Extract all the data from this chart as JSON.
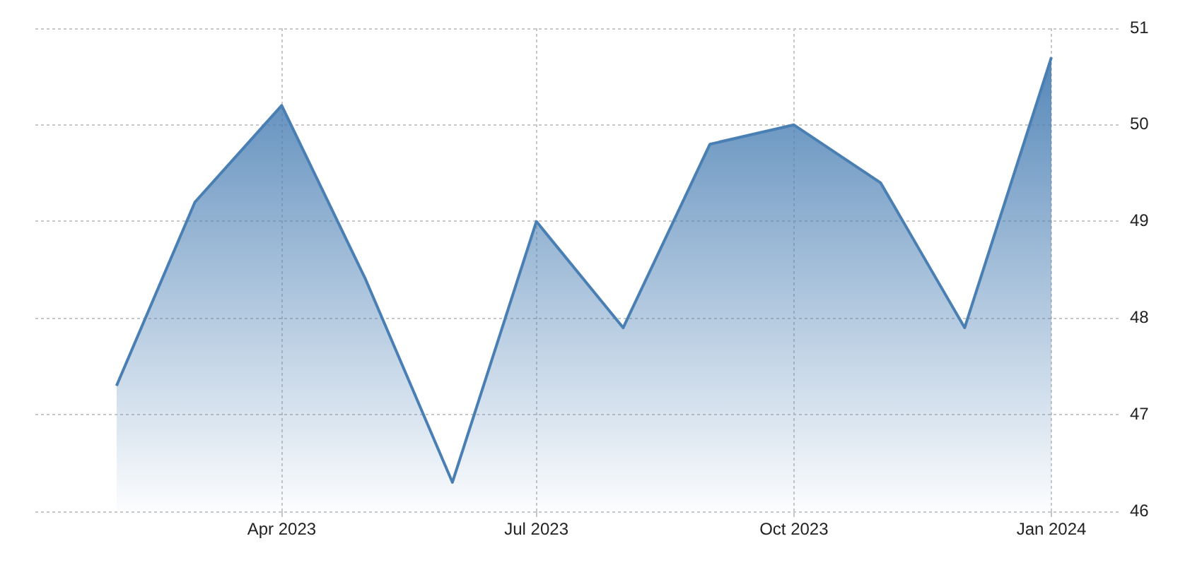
{
  "chart_data": {
    "type": "area",
    "x": [
      "2023-02",
      "2023-03",
      "2023-04",
      "2023-05",
      "2023-06",
      "2023-07",
      "2023-08",
      "2023-09",
      "2023-10",
      "2023-11",
      "2023-12",
      "2024-01"
    ],
    "series": [
      {
        "color": "#4a7fb4",
        "values": [
          47.3,
          49.2,
          50.2,
          48.4,
          46.3,
          49.0,
          47.9,
          49.8,
          50.0,
          49.4,
          47.9,
          50.7
        ]
      }
    ],
    "xlim": [
      "2023-01-03",
      "2024-01-26"
    ],
    "xticks": [
      {
        "value": "2023-04",
        "label": "Apr 2023"
      },
      {
        "value": "2023-07",
        "label": "Jul 2023"
      },
      {
        "value": "2023-10",
        "label": "Oct 2023"
      },
      {
        "value": "2024-01",
        "label": "Jan 2024"
      }
    ],
    "ylim": [
      46,
      51
    ],
    "yticks": [
      46,
      47,
      48,
      49,
      50,
      51
    ],
    "grid": true
  }
}
